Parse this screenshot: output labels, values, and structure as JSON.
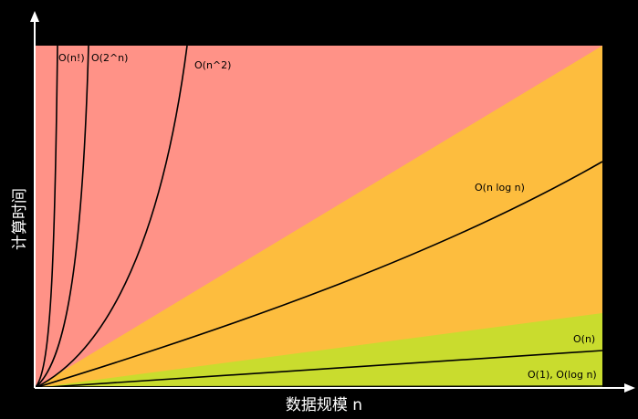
{
  "axes": {
    "y_label": "计算时间",
    "x_label": "数据规模 n"
  },
  "curves": [
    {
      "label": "O(n!)"
    },
    {
      "label": "O(2^n)"
    },
    {
      "label": "O(n^2)"
    },
    {
      "label": "O(n log n)"
    },
    {
      "label": "O(n)"
    },
    {
      "label": "O(1), O(log n)"
    }
  ]
}
